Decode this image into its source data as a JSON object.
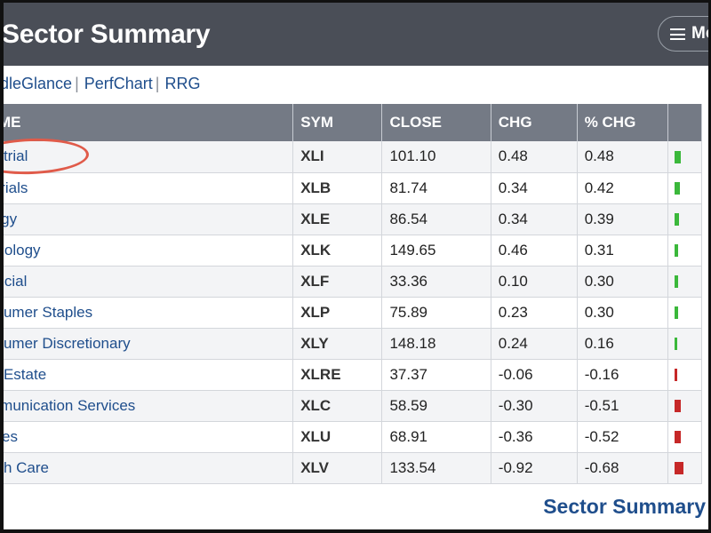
{
  "header": {
    "title": "Sector Summary",
    "more_label": "Mo"
  },
  "links": [
    "dleGlance",
    "PerfChart",
    "RRG"
  ],
  "table": {
    "columns": {
      "name": "ME",
      "sym": "SYM",
      "close": "CLOSE",
      "chg": "CHG",
      "pct": "% CHG"
    },
    "rows": [
      {
        "name": "ustrial",
        "sym": "XLI",
        "close": "101.10",
        "chg": "0.48",
        "pct": "0.48",
        "bar_color": "#3bb83b",
        "bar_level": 0.48
      },
      {
        "name": "terials",
        "sym": "XLB",
        "close": "81.74",
        "chg": "0.34",
        "pct": "0.42",
        "bar_color": "#3bb83b",
        "bar_level": 0.42
      },
      {
        "name": "ergy",
        "sym": "XLE",
        "close": "86.54",
        "chg": "0.34",
        "pct": "0.39",
        "bar_color": "#3bb83b",
        "bar_level": 0.39
      },
      {
        "name": "hnology",
        "sym": "XLK",
        "close": "149.65",
        "chg": "0.46",
        "pct": "0.31",
        "bar_color": "#3bb83b",
        "bar_level": 0.31
      },
      {
        "name": "ancial",
        "sym": "XLF",
        "close": "33.36",
        "chg": "0.10",
        "pct": "0.30",
        "bar_color": "#3bb83b",
        "bar_level": 0.3
      },
      {
        "name": "nsumer Staples",
        "sym": "XLP",
        "close": "75.89",
        "chg": "0.23",
        "pct": "0.30",
        "bar_color": "#3bb83b",
        "bar_level": 0.3
      },
      {
        "name": "nsumer Discretionary",
        "sym": "XLY",
        "close": "148.18",
        "chg": "0.24",
        "pct": "0.16",
        "bar_color": "#3bb83b",
        "bar_level": 0.16
      },
      {
        "name": "al Estate",
        "sym": "XLRE",
        "close": "37.37",
        "chg": "-0.06",
        "pct": "-0.16",
        "bar_color": "#c62828",
        "bar_level": 0.16
      },
      {
        "name": "mmunication Services",
        "sym": "XLC",
        "close": "58.59",
        "chg": "-0.30",
        "pct": "-0.51",
        "bar_color": "#c62828",
        "bar_level": 0.51
      },
      {
        "name": "lities",
        "sym": "XLU",
        "close": "68.91",
        "chg": "-0.36",
        "pct": "-0.52",
        "bar_color": "#c62828",
        "bar_level": 0.52
      },
      {
        "name": "alth Care",
        "sym": "XLV",
        "close": "133.54",
        "chg": "-0.92",
        "pct": "-0.68",
        "bar_color": "#c62828",
        "bar_level": 0.68
      }
    ]
  },
  "footer": {
    "link": "Sector Summary"
  },
  "colors": {
    "header_bg": "#4a4e57",
    "table_header_bg": "#747a85",
    "link": "#1f4e8c",
    "annotation": "#e05b4a"
  }
}
